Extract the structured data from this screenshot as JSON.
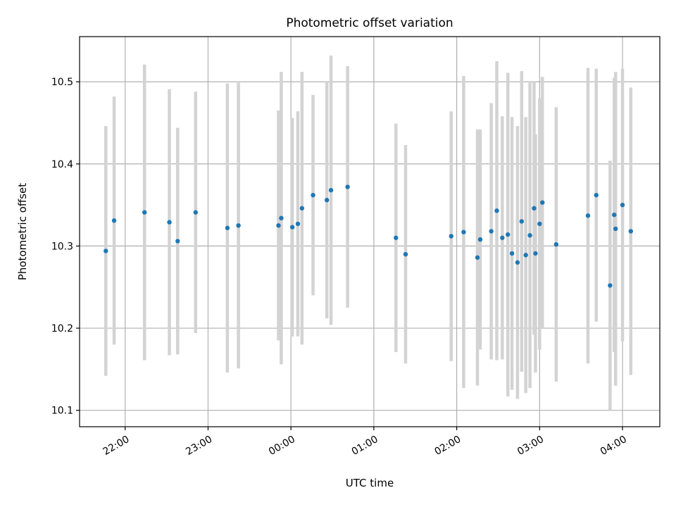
{
  "chart_data": {
    "type": "scatter",
    "title": "Photometric offset variation",
    "xlabel": "UTC time",
    "ylabel": "Photometric offset",
    "x_ticks": [
      "22:00",
      "23:00",
      "00:00",
      "01:00",
      "02:00",
      "03:00",
      "04:00"
    ],
    "y_ticks": [
      "10.1",
      "10.2",
      "10.3",
      "10.4",
      "10.5"
    ],
    "x_start_time": "21:27",
    "x_end_time": "04:27",
    "ylim": [
      10.08,
      10.555
    ],
    "grid": true,
    "legend": "none",
    "colors": {
      "marker": "#1f77b4",
      "errorbar": "#d3d3d3",
      "grid": "#b0b0b0"
    },
    "series": [
      {
        "x": [
          "21:46",
          "21:52",
          "22:14",
          "22:32",
          "22:38",
          "22:51",
          "23:14",
          "23:22",
          "23:51",
          "23:53",
          "24:01",
          "24:05",
          "24:08",
          "24:16",
          "24:26",
          "24:29",
          "24:41",
          "25:16",
          "25:23",
          "25:56",
          "26:05",
          "26:15",
          "26:17",
          "26:25",
          "26:29",
          "26:33",
          "26:37",
          "26:40",
          "26:44",
          "26:47",
          "26:50",
          "26:53",
          "26:56",
          "26:57",
          "27:00",
          "27:02",
          "27:12",
          "27:35",
          "27:41",
          "27:51",
          "27:54",
          "27:55",
          "28:00",
          "28:06"
        ],
        "y": [
          10.294,
          10.331,
          10.341,
          10.329,
          10.306,
          10.341,
          10.322,
          10.325,
          10.325,
          10.334,
          10.323,
          10.327,
          10.346,
          10.362,
          10.356,
          10.368,
          10.372,
          10.31,
          10.29,
          10.312,
          10.317,
          10.286,
          10.308,
          10.318,
          10.343,
          10.31,
          10.314,
          10.291,
          10.28,
          10.33,
          10.289,
          10.313,
          10.346,
          10.291,
          10.327,
          10.353,
          10.302,
          10.337,
          10.362,
          10.252,
          10.338,
          10.321,
          10.35,
          10.318
        ],
        "err": [
          0.152,
          0.151,
          0.18,
          0.162,
          0.138,
          0.147,
          0.176,
          0.174,
          0.14,
          0.178,
          0.133,
          0.137,
          0.166,
          0.122,
          0.144,
          0.164,
          0.147,
          0.139,
          0.133,
          0.152,
          0.19,
          0.156,
          0.134,
          0.156,
          0.182,
          0.148,
          0.197,
          0.166,
          0.166,
          0.183,
          0.168,
          0.186,
          0.154,
          0.145,
          0.153,
          0.153,
          0.167,
          0.18,
          0.154,
          0.152,
          0.167,
          0.191,
          0.166,
          0.175
        ]
      }
    ]
  }
}
